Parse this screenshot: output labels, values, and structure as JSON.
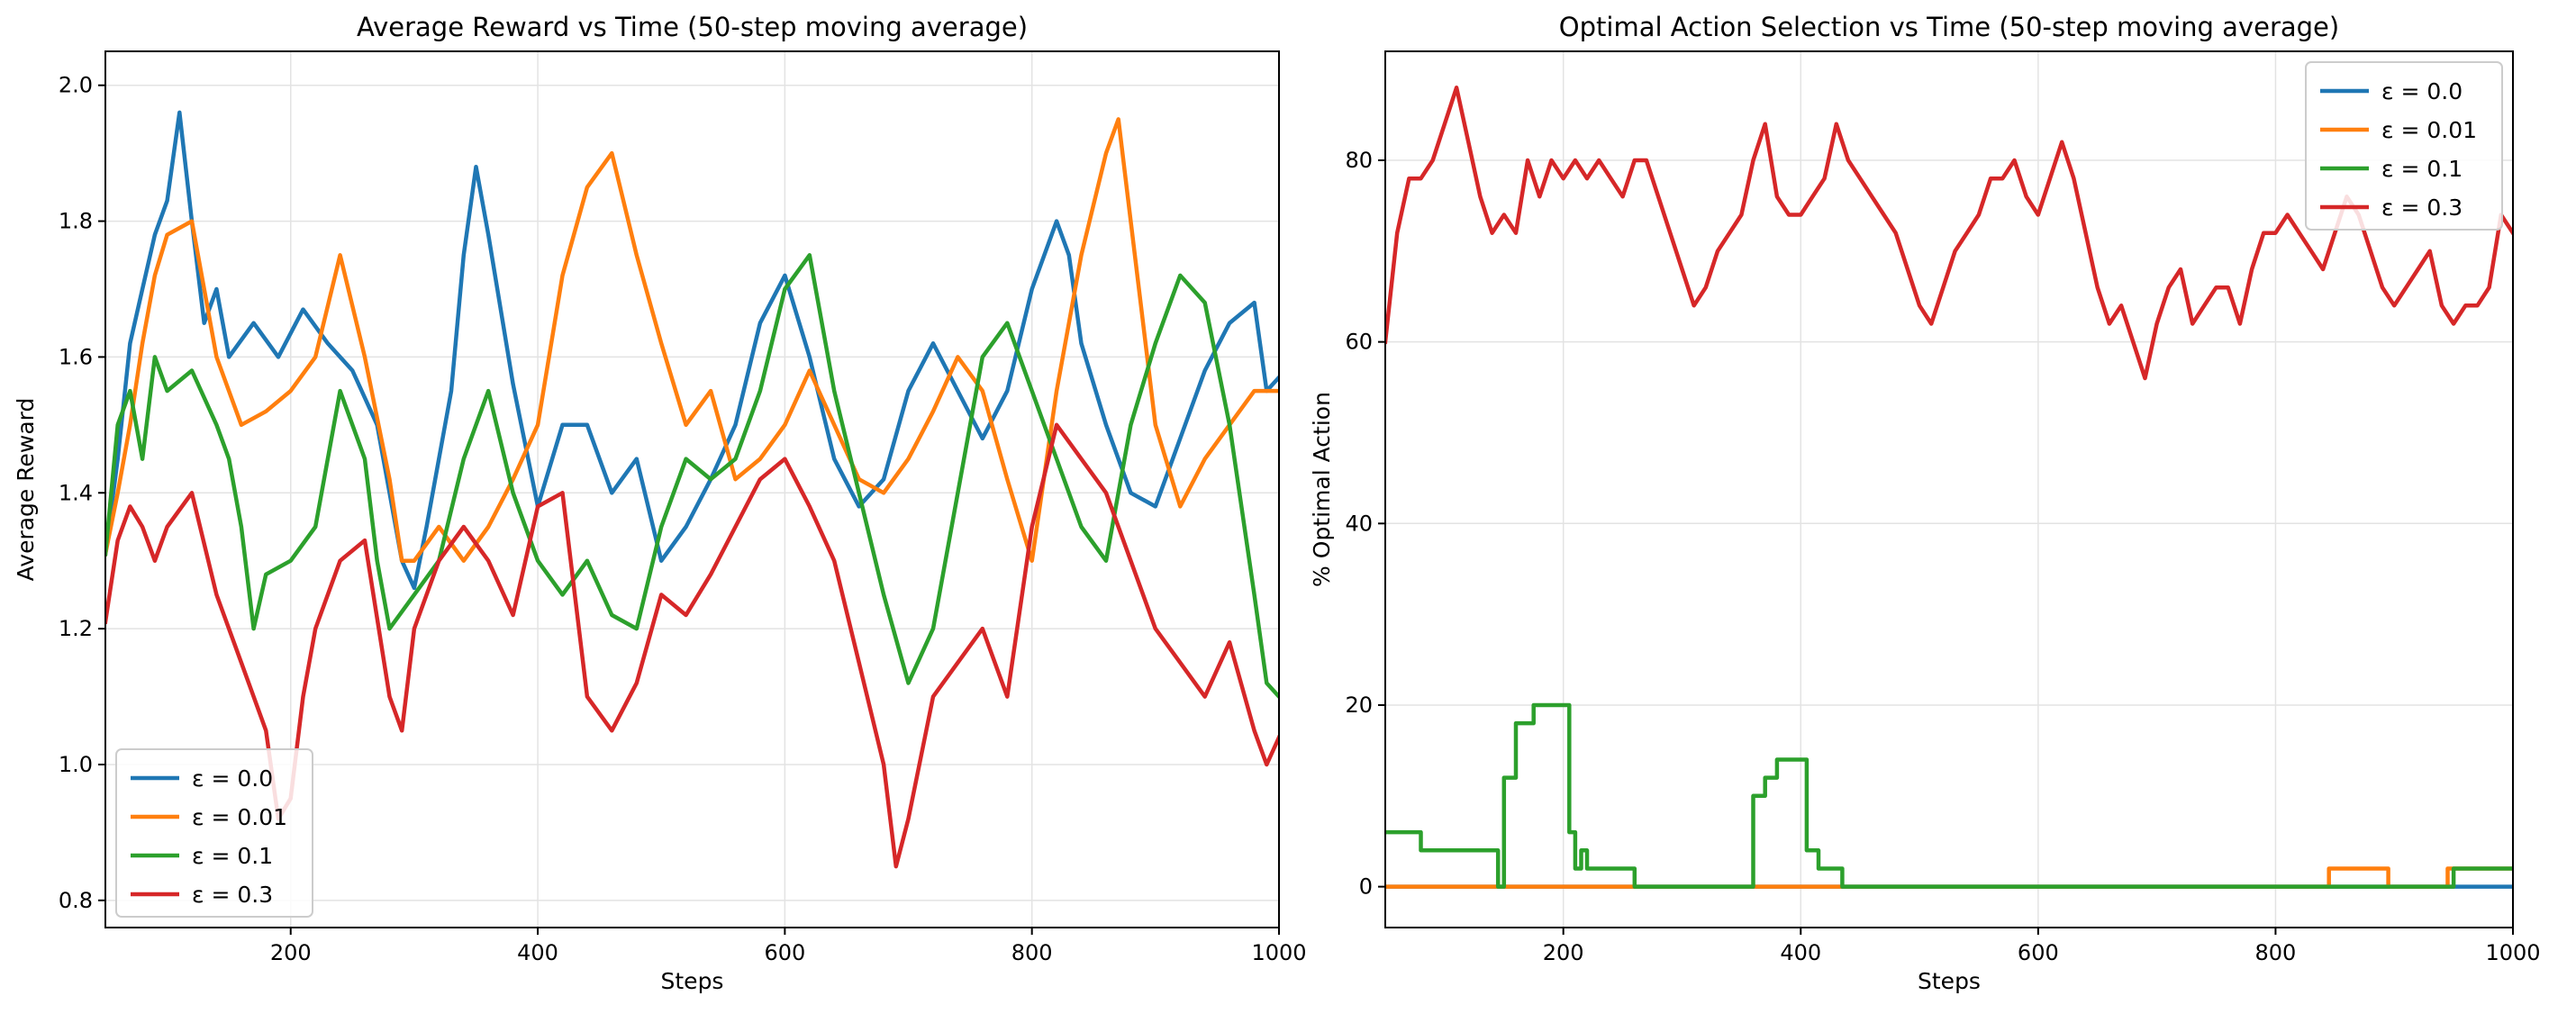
{
  "colors": {
    "eps_0_0": "#1f77b4",
    "eps_0_01": "#ff7f0e",
    "eps_0_1": "#2ca02c",
    "eps_0_3": "#d62728"
  },
  "chart_data": [
    {
      "type": "line",
      "title": "Average Reward vs Time (50-step moving average)",
      "xlabel": "Steps",
      "ylabel": "Average Reward",
      "xlim": [
        50,
        1000
      ],
      "ylim": [
        0.76,
        2.05
      ],
      "xticks": [
        200,
        400,
        600,
        800,
        1000
      ],
      "xtick_labels": [
        "200",
        "400",
        "600",
        "800",
        "1000"
      ],
      "yticks": [
        0.8,
        1.0,
        1.2,
        1.4,
        1.6,
        1.8,
        2.0
      ],
      "ytick_labels": [
        "0.8",
        "1.0",
        "1.2",
        "1.4",
        "1.6",
        "1.8",
        "2.0"
      ],
      "grid": true,
      "legend_position": "bottom-left",
      "series": [
        {
          "name": "ε = 0.0",
          "color": "#1f77b4",
          "x": [
            50,
            60,
            70,
            80,
            90,
            100,
            110,
            120,
            130,
            140,
            150,
            170,
            190,
            210,
            230,
            250,
            270,
            280,
            290,
            300,
            310,
            330,
            340,
            350,
            360,
            380,
            400,
            420,
            440,
            460,
            480,
            500,
            520,
            540,
            560,
            580,
            600,
            620,
            640,
            660,
            680,
            700,
            720,
            740,
            760,
            780,
            800,
            820,
            830,
            840,
            860,
            880,
            900,
            920,
            940,
            960,
            980,
            990,
            1000
          ],
          "y": [
            1.31,
            1.45,
            1.62,
            1.7,
            1.78,
            1.83,
            1.96,
            1.8,
            1.65,
            1.7,
            1.6,
            1.65,
            1.6,
            1.67,
            1.62,
            1.58,
            1.5,
            1.4,
            1.3,
            1.26,
            1.35,
            1.55,
            1.75,
            1.88,
            1.78,
            1.56,
            1.38,
            1.5,
            1.5,
            1.4,
            1.45,
            1.3,
            1.35,
            1.42,
            1.5,
            1.65,
            1.72,
            1.6,
            1.45,
            1.38,
            1.42,
            1.55,
            1.62,
            1.55,
            1.48,
            1.55,
            1.7,
            1.8,
            1.75,
            1.62,
            1.5,
            1.4,
            1.38,
            1.48,
            1.58,
            1.65,
            1.68,
            1.55,
            1.57
          ]
        },
        {
          "name": "ε = 0.01",
          "color": "#ff7f0e",
          "x": [
            50,
            60,
            70,
            80,
            90,
            100,
            120,
            140,
            160,
            180,
            200,
            220,
            240,
            260,
            280,
            290,
            300,
            320,
            340,
            360,
            380,
            400,
            420,
            440,
            460,
            480,
            500,
            520,
            540,
            560,
            580,
            600,
            620,
            640,
            660,
            680,
            700,
            720,
            740,
            760,
            780,
            800,
            820,
            840,
            860,
            870,
            880,
            900,
            920,
            940,
            960,
            980,
            1000
          ],
          "y": [
            1.31,
            1.4,
            1.5,
            1.62,
            1.72,
            1.78,
            1.8,
            1.6,
            1.5,
            1.52,
            1.55,
            1.6,
            1.75,
            1.6,
            1.42,
            1.3,
            1.3,
            1.35,
            1.3,
            1.35,
            1.42,
            1.5,
            1.72,
            1.85,
            1.9,
            1.75,
            1.62,
            1.5,
            1.55,
            1.42,
            1.45,
            1.5,
            1.58,
            1.5,
            1.42,
            1.4,
            1.45,
            1.52,
            1.6,
            1.55,
            1.42,
            1.3,
            1.55,
            1.75,
            1.9,
            1.95,
            1.8,
            1.5,
            1.38,
            1.45,
            1.5,
            1.55,
            1.55
          ]
        },
        {
          "name": "ε = 0.1",
          "color": "#2ca02c",
          "x": [
            50,
            60,
            70,
            80,
            90,
            100,
            120,
            140,
            150,
            160,
            170,
            180,
            200,
            220,
            240,
            260,
            270,
            280,
            300,
            320,
            340,
            360,
            380,
            400,
            420,
            440,
            460,
            480,
            500,
            520,
            540,
            560,
            580,
            600,
            620,
            640,
            660,
            680,
            700,
            720,
            740,
            760,
            780,
            800,
            820,
            840,
            860,
            880,
            900,
            920,
            940,
            960,
            980,
            990,
            1000
          ],
          "y": [
            1.31,
            1.5,
            1.55,
            1.45,
            1.6,
            1.55,
            1.58,
            1.5,
            1.45,
            1.35,
            1.2,
            1.28,
            1.3,
            1.35,
            1.55,
            1.45,
            1.3,
            1.2,
            1.25,
            1.3,
            1.45,
            1.55,
            1.4,
            1.3,
            1.25,
            1.3,
            1.22,
            1.2,
            1.35,
            1.45,
            1.42,
            1.45,
            1.55,
            1.7,
            1.75,
            1.55,
            1.4,
            1.25,
            1.12,
            1.2,
            1.4,
            1.6,
            1.65,
            1.55,
            1.45,
            1.35,
            1.3,
            1.5,
            1.62,
            1.72,
            1.68,
            1.5,
            1.25,
            1.12,
            1.1
          ]
        },
        {
          "name": "ε = 0.3",
          "color": "#d62728",
          "x": [
            50,
            60,
            70,
            80,
            90,
            100,
            120,
            140,
            160,
            180,
            190,
            200,
            210,
            220,
            240,
            260,
            280,
            290,
            300,
            320,
            340,
            360,
            380,
            400,
            420,
            440,
            460,
            480,
            500,
            520,
            540,
            560,
            580,
            600,
            620,
            640,
            660,
            680,
            690,
            700,
            720,
            740,
            760,
            780,
            800,
            820,
            840,
            860,
            880,
            900,
            920,
            940,
            960,
            980,
            990,
            1000
          ],
          "y": [
            1.21,
            1.33,
            1.38,
            1.35,
            1.3,
            1.35,
            1.4,
            1.25,
            1.15,
            1.05,
            0.92,
            0.95,
            1.1,
            1.2,
            1.3,
            1.33,
            1.1,
            1.05,
            1.2,
            1.3,
            1.35,
            1.3,
            1.22,
            1.38,
            1.4,
            1.1,
            1.05,
            1.12,
            1.25,
            1.22,
            1.28,
            1.35,
            1.42,
            1.45,
            1.38,
            1.3,
            1.15,
            1.0,
            0.85,
            0.92,
            1.1,
            1.15,
            1.2,
            1.1,
            1.35,
            1.5,
            1.45,
            1.4,
            1.3,
            1.2,
            1.15,
            1.1,
            1.18,
            1.05,
            1.0,
            1.04
          ]
        }
      ]
    },
    {
      "type": "line",
      "title": "Optimal Action Selection vs Time (50-step moving average)",
      "xlabel": "Steps",
      "ylabel": "% Optimal Action",
      "xlim": [
        50,
        1000
      ],
      "ylim": [
        -4.5,
        92
      ],
      "xticks": [
        200,
        400,
        600,
        800,
        1000
      ],
      "xtick_labels": [
        "200",
        "400",
        "600",
        "800",
        "1000"
      ],
      "yticks": [
        0,
        20,
        40,
        60,
        80
      ],
      "ytick_labels": [
        "0",
        "20",
        "40",
        "60",
        "80"
      ],
      "grid": true,
      "legend_position": "top-right",
      "series": [
        {
          "name": "ε = 0.0",
          "color": "#1f77b4",
          "step": true,
          "x": [
            50,
            1000
          ],
          "y": [
            0,
            0
          ]
        },
        {
          "name": "ε = 0.01",
          "color": "#ff7f0e",
          "step": true,
          "x": [
            50,
            845,
            895,
            945,
            990,
            1000
          ],
          "y": [
            0,
            2,
            0,
            2,
            2,
            2
          ]
        },
        {
          "name": "ε = 0.1",
          "color": "#2ca02c",
          "step": true,
          "x": [
            50,
            70,
            80,
            145,
            150,
            160,
            175,
            200,
            205,
            210,
            215,
            220,
            260,
            355,
            360,
            370,
            380,
            390,
            405,
            415,
            425,
            435,
            440,
            950,
            1000
          ],
          "y": [
            6,
            6,
            4,
            0,
            12,
            18,
            20,
            20,
            6,
            2,
            4,
            2,
            0,
            0,
            10,
            12,
            14,
            14,
            4,
            2,
            2,
            0,
            0,
            2,
            2
          ]
        },
        {
          "name": "ε = 0.3",
          "color": "#d62728",
          "step": false,
          "x": [
            50,
            55,
            60,
            70,
            80,
            90,
            100,
            110,
            120,
            130,
            140,
            150,
            160,
            170,
            180,
            190,
            200,
            210,
            220,
            230,
            240,
            250,
            260,
            270,
            280,
            290,
            300,
            310,
            320,
            330,
            340,
            350,
            360,
            370,
            380,
            390,
            400,
            410,
            420,
            430,
            440,
            450,
            460,
            470,
            480,
            490,
            500,
            510,
            520,
            530,
            540,
            550,
            560,
            570,
            580,
            590,
            600,
            610,
            620,
            630,
            640,
            650,
            660,
            670,
            680,
            690,
            700,
            710,
            720,
            730,
            740,
            750,
            760,
            770,
            780,
            790,
            800,
            810,
            820,
            830,
            840,
            850,
            860,
            870,
            880,
            890,
            900,
            910,
            920,
            930,
            940,
            950,
            960,
            970,
            980,
            990,
            1000
          ],
          "y": [
            60,
            66,
            72,
            78,
            78,
            80,
            84,
            88,
            82,
            76,
            72,
            74,
            72,
            80,
            76,
            80,
            78,
            80,
            78,
            80,
            78,
            76,
            80,
            80,
            76,
            72,
            68,
            64,
            66,
            70,
            72,
            74,
            80,
            84,
            76,
            74,
            74,
            76,
            78,
            84,
            80,
            78,
            76,
            74,
            72,
            68,
            64,
            62,
            66,
            70,
            72,
            74,
            78,
            78,
            80,
            76,
            74,
            78,
            82,
            78,
            72,
            66,
            62,
            64,
            60,
            56,
            62,
            66,
            68,
            62,
            64,
            66,
            66,
            62,
            68,
            72,
            72,
            74,
            72,
            70,
            68,
            72,
            76,
            74,
            70,
            66,
            64,
            66,
            68,
            70,
            64,
            62,
            64,
            64,
            66,
            74,
            72
          ]
        }
      ]
    }
  ]
}
